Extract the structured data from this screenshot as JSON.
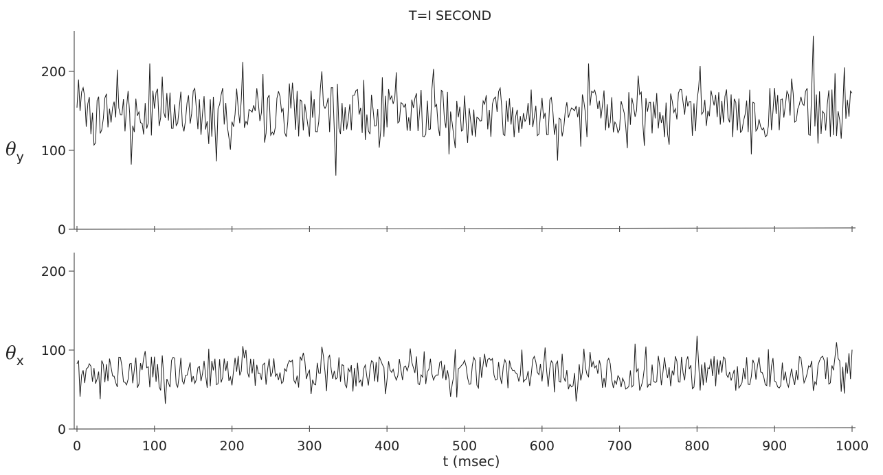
{
  "chart_data": [
    {
      "type": "line",
      "title": "T=I SECOND",
      "ylabel_main": "θ",
      "ylabel_sub": "y",
      "xlabel": "",
      "ylim": [
        0,
        240
      ],
      "yticks": [
        0,
        100,
        200
      ],
      "xlim": [
        0,
        1000
      ],
      "grid": false,
      "series_stats": {
        "x_start": 0,
        "x_end": 1000,
        "step": 2,
        "mean": 148,
        "typical_low": 115,
        "typical_high": 185,
        "max_spike": 245,
        "min_spike": 68
      },
      "peaks": [
        {
          "x": 52,
          "y": 202
        },
        {
          "x": 95,
          "y": 210
        },
        {
          "x": 215,
          "y": 212
        },
        {
          "x": 460,
          "y": 203
        },
        {
          "x": 660,
          "y": 210
        },
        {
          "x": 805,
          "y": 207
        },
        {
          "x": 950,
          "y": 245
        },
        {
          "x": 990,
          "y": 205
        }
      ],
      "troughs": [
        {
          "x": 70,
          "y": 82
        },
        {
          "x": 180,
          "y": 86
        },
        {
          "x": 335,
          "y": 68
        },
        {
          "x": 480,
          "y": 95
        },
        {
          "x": 620,
          "y": 87
        },
        {
          "x": 870,
          "y": 95
        }
      ]
    },
    {
      "type": "line",
      "title": "",
      "ylabel_main": "θ",
      "ylabel_sub": "x",
      "xlabel": "t (msec)",
      "ylim": [
        0,
        230
      ],
      "yticks": [
        0,
        100,
        200
      ],
      "xticks": [
        0,
        100,
        200,
        300,
        400,
        500,
        600,
        700,
        800,
        900,
        1000
      ],
      "xlim": [
        0,
        1000
      ],
      "grid": false,
      "series_stats": {
        "x_start": 0,
        "x_end": 1000,
        "step": 2,
        "mean": 72,
        "typical_low": 50,
        "typical_high": 95,
        "max_spike": 118,
        "min_spike": 32
      },
      "peaks": [
        {
          "x": 215,
          "y": 105
        },
        {
          "x": 430,
          "y": 102
        },
        {
          "x": 720,
          "y": 108
        },
        {
          "x": 800,
          "y": 118
        },
        {
          "x": 980,
          "y": 110
        }
      ],
      "troughs": [
        {
          "x": 30,
          "y": 38
        },
        {
          "x": 115,
          "y": 32
        },
        {
          "x": 490,
          "y": 40
        },
        {
          "x": 645,
          "y": 35
        },
        {
          "x": 990,
          "y": 45
        }
      ]
    }
  ]
}
